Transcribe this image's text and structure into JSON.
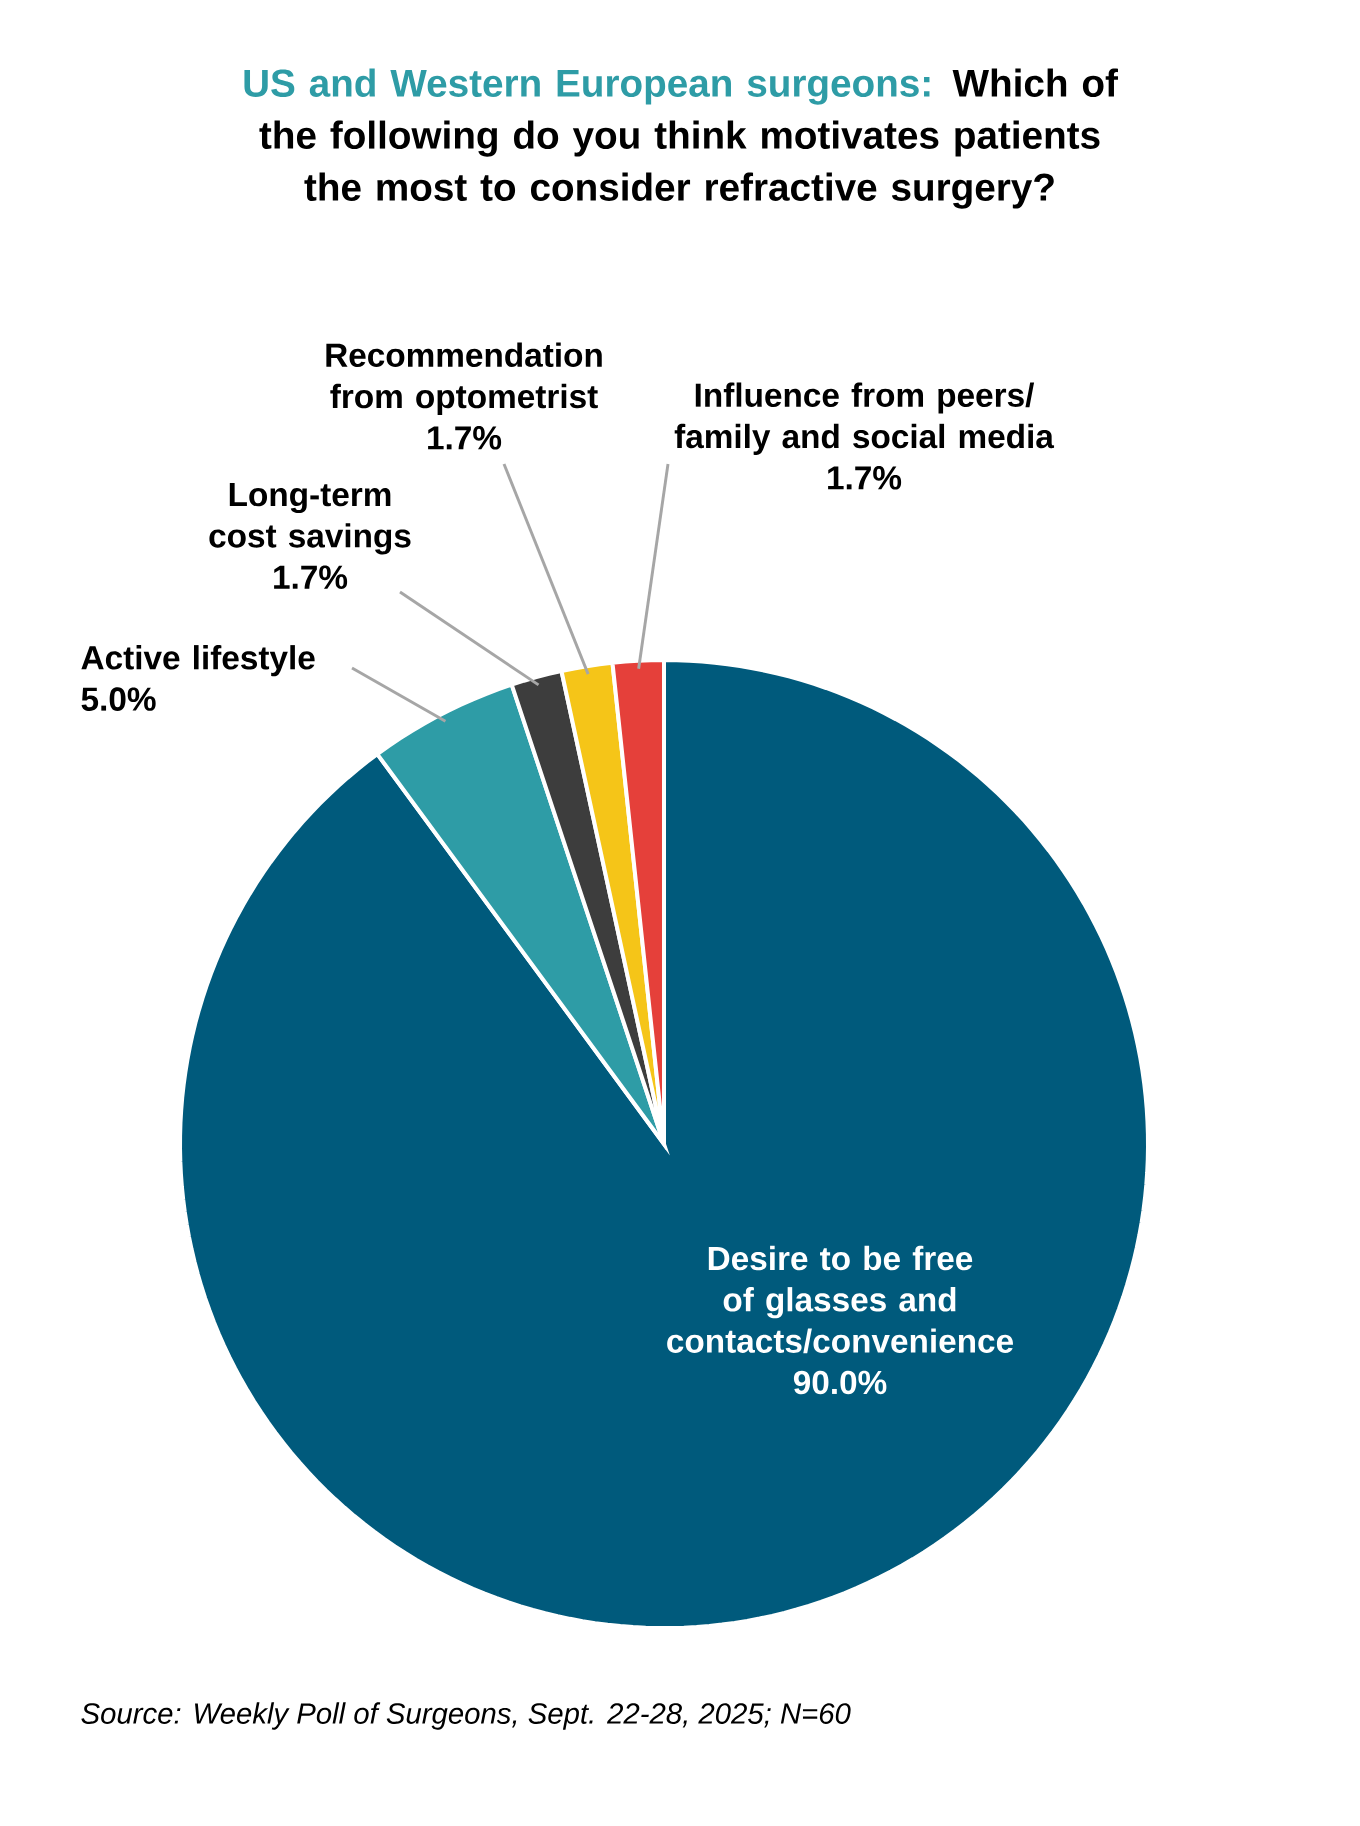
{
  "chart_data": {
    "type": "pie",
    "title": "US and Western European surgeons:",
    "subtitle": "Which of the following do you think motivates patients the most to consider refractive surgery?",
    "categories": [
      "Desire to be free of glasses and contacts/convenience",
      "Active lifestyle",
      "Long-term cost savings",
      "Recommendation from optometrist",
      "Influence from peers/ family and social media"
    ],
    "values": [
      90.0,
      5.0,
      1.7,
      1.7,
      1.7
    ],
    "value_labels": [
      "90.0%",
      "5.0%",
      "1.7%",
      "1.7%",
      "1.7%"
    ],
    "colors": [
      "#005a7c",
      "#2e9ca6",
      "#3d3d3d",
      "#f5c518",
      "#e5403a"
    ],
    "annotations": [
      "Source: Weekly Poll of Surgeons, Sept. 22-28, 2025; N=60"
    ]
  }
}
